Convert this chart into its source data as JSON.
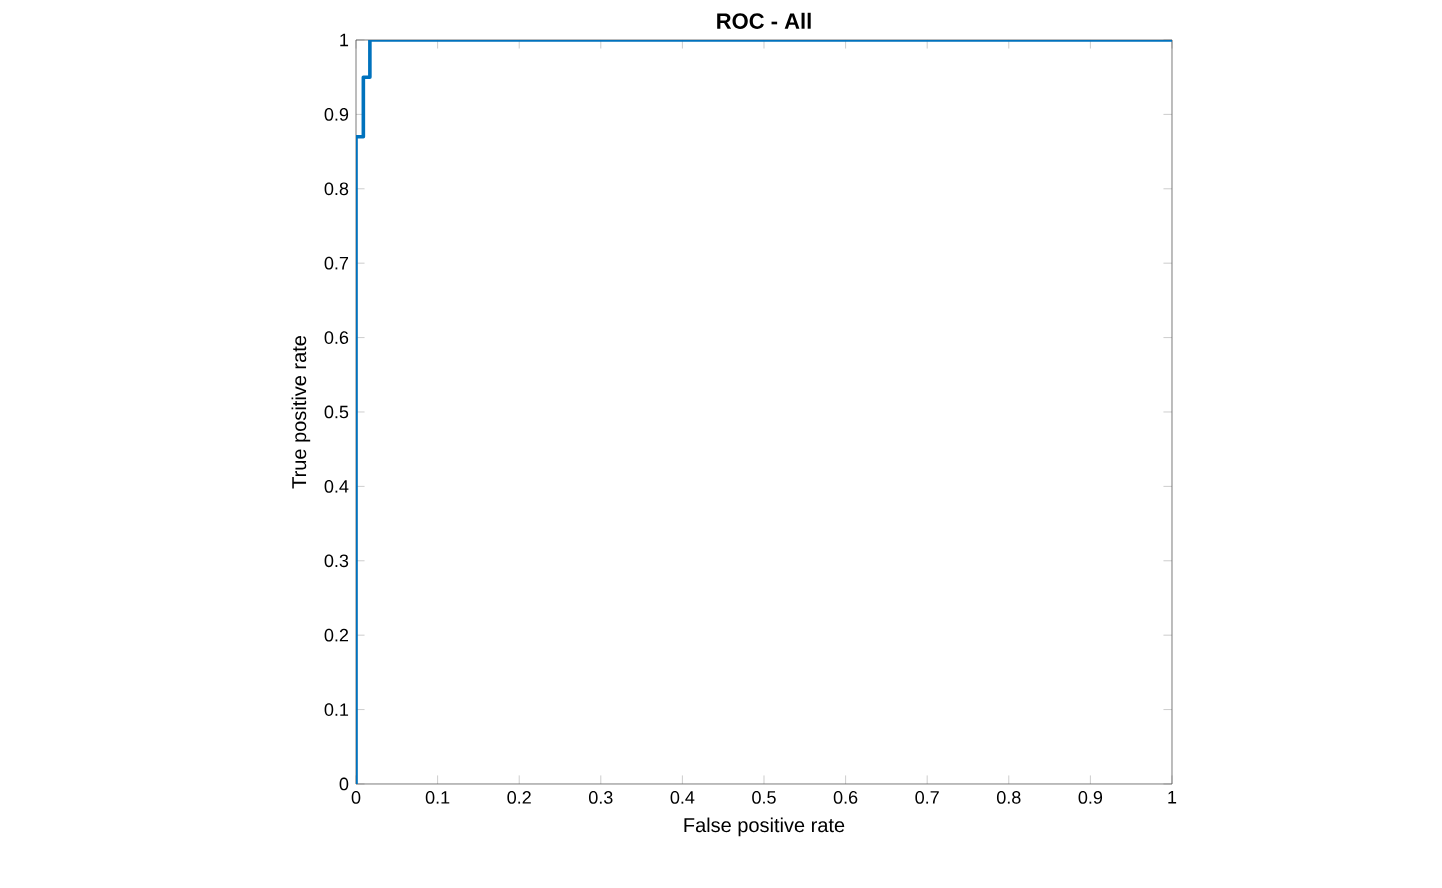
{
  "chart_data": {
    "type": "step",
    "title": "ROC - All",
    "xlabel": "False positive rate",
    "ylabel": "True positive rate",
    "x": [
      0,
      0,
      0.009,
      0.009,
      0.017,
      0.017,
      1
    ],
    "series": [
      {
        "color": "#0072bd",
        "values": [
          0,
          0.87,
          0.87,
          0.95,
          0.95,
          1,
          1
        ]
      }
    ],
    "xlim": [
      0,
      1
    ],
    "ylim": [
      0,
      1
    ],
    "xticks": [
      0,
      0.1,
      0.2,
      0.3,
      0.4,
      0.5,
      0.6,
      0.7,
      0.8,
      0.9,
      1
    ],
    "yticks": [
      0,
      0.1,
      0.2,
      0.3,
      0.4,
      0.5,
      0.6,
      0.7,
      0.8,
      0.9,
      1
    ],
    "tick_labels": "xy"
  }
}
